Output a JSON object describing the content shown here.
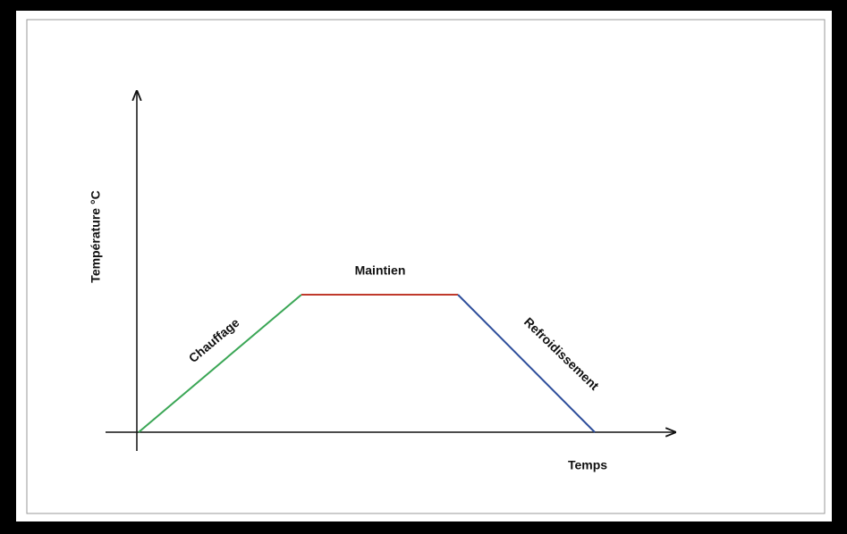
{
  "y_axis_label": "Température °C",
  "x_axis_label": "Temps",
  "phases": [
    {
      "label": "Chauffage"
    },
    {
      "label": "Maintien"
    },
    {
      "label": "Refroidissement"
    }
  ]
}
